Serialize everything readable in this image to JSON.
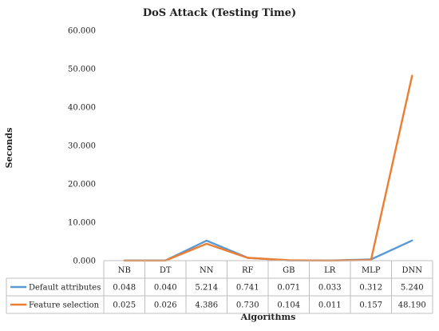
{
  "chart_data": {
    "type": "line",
    "title": "DoS Attack (Testing Time)",
    "xlabel": "Algorithms",
    "ylabel": "Seconds",
    "categories": [
      "NB",
      "DT",
      "NN",
      "RF",
      "GB",
      "LR",
      "MLP",
      "DNN"
    ],
    "ylim": [
      0,
      60
    ],
    "yticks": [
      "0.000",
      "10.000",
      "20.000",
      "30.000",
      "40.000",
      "50.000",
      "60.000"
    ],
    "grid": false,
    "legend_placement": "data table below plot",
    "series": [
      {
        "name": "Default attributes",
        "color": "#5b9bd5",
        "values": [
          0.048,
          0.04,
          5.214,
          0.741,
          0.071,
          0.033,
          0.312,
          5.24
        ],
        "labels": [
          "0.048",
          "0.040",
          "5.214",
          "0.741",
          "0.071",
          "0.033",
          "0.312",
          "5.240"
        ]
      },
      {
        "name": "Feature selection",
        "color": "#ed7d31",
        "values": [
          0.025,
          0.026,
          4.386,
          0.73,
          0.104,
          0.011,
          0.157,
          48.19
        ],
        "labels": [
          "0.025",
          "0.026",
          "4.386",
          "0.730",
          "0.104",
          "0.011",
          "0.157",
          "48.190"
        ]
      }
    ]
  }
}
